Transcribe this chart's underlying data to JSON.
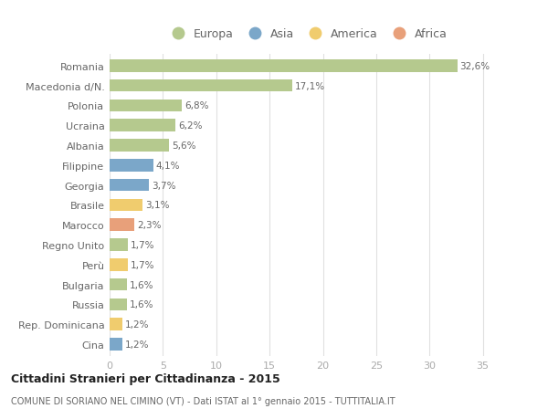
{
  "categories": [
    "Romania",
    "Macedonia d/N.",
    "Polonia",
    "Ucraina",
    "Albania",
    "Filippine",
    "Georgia",
    "Brasile",
    "Marocco",
    "Regno Unito",
    "Perù",
    "Bulgaria",
    "Russia",
    "Rep. Dominicana",
    "Cina"
  ],
  "values": [
    32.6,
    17.1,
    6.8,
    6.2,
    5.6,
    4.1,
    3.7,
    3.1,
    2.3,
    1.7,
    1.7,
    1.6,
    1.6,
    1.2,
    1.2
  ],
  "labels": [
    "32,6%",
    "17,1%",
    "6,8%",
    "6,2%",
    "5,6%",
    "4,1%",
    "3,7%",
    "3,1%",
    "2,3%",
    "1,7%",
    "1,7%",
    "1,6%",
    "1,6%",
    "1,2%",
    "1,2%"
  ],
  "continents": [
    "Europa",
    "Europa",
    "Europa",
    "Europa",
    "Europa",
    "Asia",
    "Asia",
    "America",
    "Africa",
    "Europa",
    "America",
    "Europa",
    "Europa",
    "America",
    "Asia"
  ],
  "colors": {
    "Europa": "#b5c98e",
    "Asia": "#7ba7c9",
    "America": "#f0cc6e",
    "Africa": "#e8a07a"
  },
  "legend_order": [
    "Europa",
    "Asia",
    "America",
    "Africa"
  ],
  "title": "Cittadini Stranieri per Cittadinanza - 2015",
  "subtitle": "COMUNE DI SORIANO NEL CIMINO (VT) - Dati ISTAT al 1° gennaio 2015 - TUTTITALIA.IT",
  "xlim": [
    0,
    37
  ],
  "xticks": [
    0,
    5,
    10,
    15,
    20,
    25,
    30,
    35
  ],
  "background_color": "#ffffff",
  "grid_color": "#e0e0e0"
}
